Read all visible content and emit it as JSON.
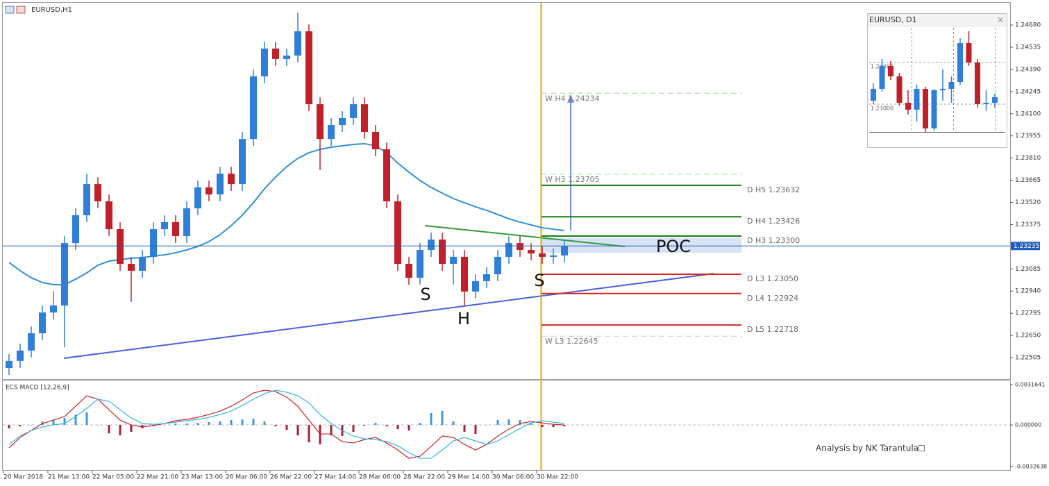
{
  "window": {
    "symbol_label": "EURUSD,H1",
    "watermark": "Analysis by NK Tarantula"
  },
  "chart_data": [
    {
      "type": "candlestick",
      "categories": [
        "20 Mar 2018",
        null,
        null,
        null,
        "21 Mar 13:00",
        null,
        null,
        null,
        "22 Mar 05:00",
        null,
        null,
        null,
        "22 Mar 21:00",
        null,
        null,
        null,
        "23 Mar 13:00",
        null,
        null,
        null,
        "26 Mar 06:00",
        null,
        null,
        null,
        "26 Mar 22:00",
        null,
        null,
        null,
        "27 Mar 14:00",
        null,
        null,
        null,
        "28 Mar 06:00",
        null,
        null,
        null,
        "28 Mar 22:00",
        null,
        null,
        null,
        "29 Mar 14:00",
        null,
        null,
        null,
        "30 Mar 06:00",
        null,
        null,
        null,
        "30 Mar 22:00",
        null,
        null
      ],
      "open": [
        1.22437,
        1.22483,
        1.22551,
        1.22664,
        1.228,
        1.22846,
        1.23254,
        1.23436,
        1.2364,
        1.23527,
        1.23345,
        1.23118,
        1.23073,
        1.23164,
        1.23345,
        1.23391,
        1.233,
        1.23481,
        1.23618,
        1.23572,
        1.23708,
        1.2364,
        1.23935,
        1.24344,
        1.24526,
        1.24458,
        1.2448,
        1.24639,
        1.24162,
        1.23935,
        1.24026,
        1.24072,
        1.24162,
        1.23981,
        1.23867,
        1.23527,
        1.23118,
        1.23027,
        1.23209,
        1.23277,
        1.23118,
        1.23164,
        1.22937,
        1.23005,
        1.2305,
        1.23164,
        1.23254,
        1.23209,
        1.23186,
        1.23164,
        1.23173
      ],
      "high": [
        1.22528,
        1.22596,
        1.22709,
        1.22845,
        1.2294,
        1.23299,
        1.23481,
        1.23707,
        1.23685,
        1.23572,
        1.2339,
        1.23163,
        1.23209,
        1.2339,
        1.23436,
        1.23436,
        1.23526,
        1.23663,
        1.23663,
        1.23753,
        1.23753,
        1.2398,
        1.24389,
        1.24571,
        1.24571,
        1.24525,
        1.24762,
        1.24684,
        1.24207,
        1.24071,
        1.24117,
        1.24207,
        1.24207,
        1.24026,
        1.23912,
        1.23572,
        1.23163,
        1.23254,
        1.23322,
        1.23322,
        1.23209,
        1.23209,
        1.2305,
        1.23095,
        1.23209,
        1.23299,
        1.23299,
        1.23254,
        1.23231,
        1.23218,
        1.23277
      ],
      "low": [
        1.22392,
        1.22438,
        1.22506,
        1.22619,
        1.22755,
        1.22573,
        1.23209,
        1.23391,
        1.23482,
        1.233,
        1.23073,
        1.22869,
        1.23028,
        1.23119,
        1.233,
        1.23255,
        1.23255,
        1.23436,
        1.23527,
        1.23527,
        1.23595,
        1.23595,
        1.2389,
        1.24299,
        1.24413,
        1.24413,
        1.24435,
        1.24117,
        1.23731,
        1.2389,
        1.23981,
        1.24027,
        1.23936,
        1.23822,
        1.23482,
        1.23073,
        1.22982,
        1.22982,
        1.23164,
        1.23073,
        1.22982,
        1.22846,
        1.22892,
        1.2296,
        1.23005,
        1.23119,
        1.23164,
        1.23141,
        1.23119,
        1.23119,
        1.23128
      ],
      "close": [
        1.22483,
        1.22551,
        1.22664,
        1.228,
        1.22846,
        1.23254,
        1.23436,
        1.2364,
        1.23527,
        1.23345,
        1.23118,
        1.23073,
        1.23164,
        1.23345,
        1.23391,
        1.233,
        1.23481,
        1.23618,
        1.23572,
        1.23708,
        1.2364,
        1.23935,
        1.24344,
        1.24526,
        1.24458,
        1.2448,
        1.24639,
        1.24162,
        1.23935,
        1.24026,
        1.24072,
        1.24162,
        1.23981,
        1.23867,
        1.23527,
        1.23118,
        1.23027,
        1.23209,
        1.23277,
        1.23118,
        1.23164,
        1.22937,
        1.23005,
        1.2305,
        1.23164,
        1.23254,
        1.23209,
        1.23186,
        1.23164,
        1.23173,
        1.23232
      ],
      "color_up": "#2f7ed8",
      "color_down": "#c0202a",
      "ma": {
        "color": "#2f8fd8",
        "values": [
          1.23127,
          1.23073,
          1.23027,
          1.22996,
          1.22982,
          1.22982,
          1.23018,
          1.23059,
          1.23109,
          1.23136,
          1.23146,
          1.23155,
          1.23159,
          1.23168,
          1.23177,
          1.23191,
          1.23209,
          1.23232,
          1.23264,
          1.23309,
          1.23368,
          1.23436,
          1.23518,
          1.23609,
          1.23686,
          1.23754,
          1.23808,
          1.23845,
          1.23867,
          1.23881,
          1.2389,
          1.23899,
          1.23904,
          1.2389,
          1.23845,
          1.23777,
          1.23718,
          1.23663,
          1.23618,
          1.23581,
          1.23545,
          1.23518,
          1.23491,
          1.23468,
          1.23441,
          1.23413,
          1.23391,
          1.23373,
          1.23354,
          1.23345,
          1.23336
        ]
      },
      "ylim": [
        1.22369,
        1.24821
      ],
      "yticks": [
        1.22505,
        {
          "value": 1.2265,
          "label": "1.22650"
        },
        1.22795,
        {
          "value": 1.2294,
          "label": "1.22940"
        },
        1.23085,
        1.23375,
        {
          "value": 1.2352,
          "label": "1.23520"
        },
        1.23665,
        {
          "value": 1.2381,
          "label": "1.23810"
        },
        1.23955,
        {
          "value": 1.241,
          "label": "1.24100"
        },
        1.24245,
        {
          "value": 1.2439,
          "label": "1.24390"
        },
        1.24535,
        {
          "value": 1.2468,
          "label": "1.24680"
        }
      ],
      "current_price": 1.23235,
      "current_price_color": "#1f5fbf",
      "levels": [
        {
          "text": "W  H4 1.24234",
          "value": 1.24234,
          "color": "#9fdc9f",
          "dashed": true
        },
        {
          "text": "W  H3 1.23705",
          "value": 1.23705,
          "color": "#9fdc9f",
          "dashed": true
        },
        {
          "text": "D  H5 1.23632",
          "value": 1.23632,
          "color": "#1a7a1a",
          "dashed": false
        },
        {
          "text": "D  H4 1.23426",
          "value": 1.23426,
          "color": "#1a7a1a",
          "dashed": false
        },
        {
          "text": "D  H3 1.23300",
          "value": 1.233,
          "color": "#1a7a1a",
          "dashed": false
        },
        {
          "text": "D  L3 1.23050",
          "value": 1.2305,
          "color": "#dd2222",
          "dashed": false
        },
        {
          "text": "D  L4 1.22924",
          "value": 1.22924,
          "color": "#dd2222",
          "dashed": false
        },
        {
          "text": "D  L5 1.22718",
          "value": 1.22718,
          "color": "#dd2222",
          "dashed": false
        },
        {
          "text": "W  L3 1.22645",
          "value": 1.22645,
          "color": "#cccccc",
          "dashed": true
        }
      ],
      "annotations": [
        "S",
        "H",
        "S",
        "POC"
      ]
    },
    {
      "type": "macd",
      "title": "ECS MACD [12,26,9]",
      "histogram": [
        -0.00027,
        -0.00011,
        0,
        0.00027,
        0.00038,
        0.00055,
        0.00081,
        0.00098,
        0,
        -0.00066,
        -0.00082,
        -0.00055,
        -0.00027,
        -0.0001,
        0,
        0.00011,
        0.00011,
        0.00016,
        0.00022,
        0.00027,
        0.00038,
        0.00043,
        0.00049,
        0.00027,
        -0.00011,
        -0.00039,
        -0.00082,
        -0.00137,
        -0.00153,
        -0.00082,
        -0.00087,
        -0.00055,
        -6e-05,
        0.00017,
        -0.00011,
        -0.00033,
        -0.00044,
        0.00016,
        0.00093,
        0.0011,
        0.00028,
        -0.00055,
        -0.00071,
        0,
        0.00039,
        0.00043,
        0.00038,
        0.00011,
        -0.00017,
        -0.00017,
        -0.00011
      ],
      "hist_color_up": "#3b9ad6",
      "hist_color_down": "#a5203a",
      "lines": [
        {
          "color": "#cc2222",
          "values": [
            -0.0018,
            -0.00098,
            -0.00044,
            0.00011,
            0.00038,
            0.00066,
            0.00147,
            0.00229,
            0.00202,
            0.0012,
            0.00038,
            0,
            -0.00016,
            -5e-05,
            0.00011,
            0.00033,
            0.00044,
            0.0006,
            0.00082,
            0.00109,
            0.00147,
            0.00196,
            0.00251,
            0.00273,
            0.00262,
            0.00218,
            0.00147,
            0.00038,
            -0.00071,
            -0.00071,
            -0.00131,
            -0.00142,
            -0.00115,
            -0.00098,
            -0.00142,
            -0.00197,
            -0.00262,
            -0.00246,
            -0.00169,
            -0.00087,
            -0.00098,
            -0.00153,
            -0.00197,
            -0.00153,
            -0.00087,
            -0.00033,
            0.00011,
            0.00027,
            0.00016,
            5e-05,
            0
          ]
        },
        {
          "color": "#33b5e0",
          "values": [
            -0.00153,
            -0.00087,
            -0.00044,
            -0.00016,
            0,
            0.00011,
            0.00066,
            0.00131,
            0.00202,
            0.00186,
            0.0012,
            0.00055,
            0.00011,
            5e-05,
            0.00011,
            0.00022,
            0.00033,
            0.00044,
            0.0006,
            0.00082,
            0.00109,
            0.00153,
            0.00202,
            0.00246,
            0.00273,
            0.00257,
            0.00229,
            0.00175,
            0.00082,
            0.00011,
            -0.00044,
            -0.00087,
            -0.00109,
            -0.00115,
            -0.00131,
            -0.00164,
            -0.00218,
            -0.00262,
            -0.00262,
            -0.00197,
            -0.00126,
            -0.00098,
            -0.00126,
            -0.00153,
            -0.00126,
            -0.00076,
            -0.00027,
            0.00016,
            0.00033,
            0.00022,
            0.00011
          ]
        }
      ],
      "ylim": [
        -0.00349,
        0.00344
      ],
      "yticks": [
        -0.0032638,
        {
          "value": 0,
          "label": "0.000000"
        },
        0.0031641
      ]
    },
    {
      "type": "candlestick",
      "title": "EURUSD, D1",
      "open": [
        1.23083,
        1.23367,
        1.23917,
        1.23667,
        1.23033,
        1.22867,
        1.23367,
        1.22417,
        1.23333,
        1.23367,
        1.23533,
        1.24467,
        1.24,
        1.23,
        1.23033
      ],
      "high": [
        1.235,
        1.24083,
        1.24033,
        1.2375,
        1.23333,
        1.23467,
        1.23417,
        1.23367,
        1.23833,
        1.23667,
        1.24583,
        1.2475,
        1.24083,
        1.23333,
        1.2325
      ],
      "low": [
        1.23,
        1.233,
        1.23583,
        1.22967,
        1.2275,
        1.22583,
        1.22333,
        1.22367,
        1.23083,
        1.23033,
        1.23467,
        1.23917,
        1.22917,
        1.22833,
        1.22917
      ],
      "close": [
        1.23367,
        1.23917,
        1.23667,
        1.23033,
        1.22867,
        1.23367,
        1.22417,
        1.23333,
        1.23367,
        1.23533,
        1.24467,
        1.24,
        1.23,
        1.23033,
        1.23167
      ],
      "color_up": "#2f7ed8",
      "color_down": "#c0202a",
      "ylim": [
        1.22333,
        1.24833
      ],
      "yticks": [
        {
          "value": 1.23,
          "label": "1.23000"
        },
        {
          "value": 1.24,
          "label": "1.24000"
        }
      ]
    }
  ]
}
